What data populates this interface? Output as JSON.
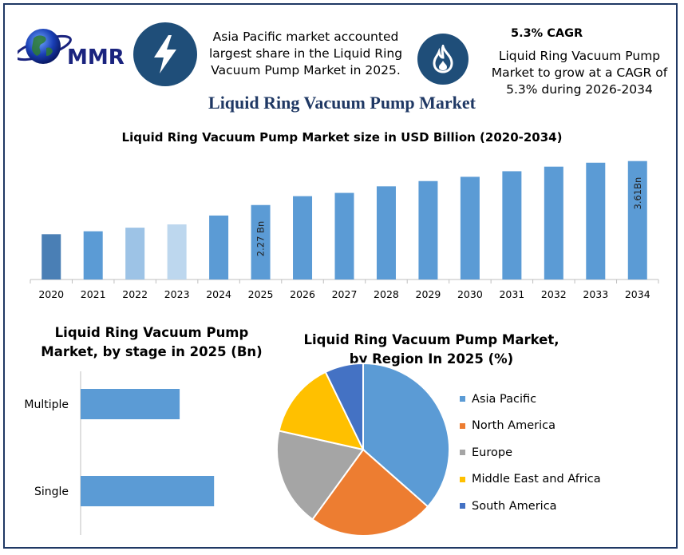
{
  "logo": {
    "text": "MMR"
  },
  "header": {
    "info_left": "Asia Pacific market accounted largest share in the  Liquid Ring Vacuum Pump Market in 2025.",
    "cagr_title": "5.3% CAGR",
    "info_right": "Liquid Ring Vacuum Pump Market to grow at a CAGR of 5.3% during 2026-2034",
    "lightning_icon": "lightning-icon",
    "flame_icon": "flame-icon"
  },
  "main_title": "Liquid Ring Vacuum Pump Market",
  "colors": {
    "navy": "#1f4e79",
    "bar_blue": "#5b9bd5",
    "bar_dark": "#4a7fb5",
    "bar_light": "#9dc3e6",
    "bar_lighter": "#bdd7ee",
    "axis": "#bfbfbf"
  },
  "chart_data": [
    {
      "type": "bar",
      "title": "Liquid Ring Vacuum Pump Market size in USD Billion (2020-2034)",
      "categories": [
        "2020",
        "2021",
        "2022",
        "2023",
        "2024",
        "2025",
        "2026",
        "2027",
        "2028",
        "2029",
        "2030",
        "2031",
        "2032",
        "2033",
        "2034"
      ],
      "values": [
        1.38,
        1.47,
        1.58,
        1.68,
        1.95,
        2.27,
        2.54,
        2.64,
        2.84,
        3.0,
        3.13,
        3.3,
        3.44,
        3.56,
        3.61
      ],
      "data_labels": {
        "2025": "2.27 Bn",
        "2034": "3.61Bn"
      },
      "bar_colors": [
        "#4a7fb5",
        "#5b9bd5",
        "#9dc3e6",
        "#bdd7ee",
        "#5b9bd5",
        "#5b9bd5",
        "#5b9bd5",
        "#5b9bd5",
        "#5b9bd5",
        "#5b9bd5",
        "#5b9bd5",
        "#5b9bd5",
        "#5b9bd5",
        "#5b9bd5",
        "#5b9bd5"
      ],
      "ylim": [
        0,
        3.7
      ],
      "grid": false
    },
    {
      "type": "bar",
      "orientation": "horizontal",
      "title": "Liquid Ring Vacuum Pump Market, by stage in 2025 (Bn)",
      "categories": [
        "Multiple",
        "Single"
      ],
      "values": [
        0.95,
        1.28
      ],
      "xlim": [
        0,
        1.6
      ]
    },
    {
      "type": "pie",
      "title": "Liquid Ring Vacuum Pump Market, by Region In 2025 (%)",
      "labels": [
        "Asia Pacific",
        "North America",
        "Europe",
        "Middle East and Africa",
        "South America"
      ],
      "values": [
        36.5,
        23.5,
        18.5,
        14.3,
        7.2
      ],
      "colors": [
        "#5b9bd5",
        "#ed7d31",
        "#a5a5a5",
        "#ffc000",
        "#4472c4"
      ],
      "legend": "right"
    }
  ]
}
